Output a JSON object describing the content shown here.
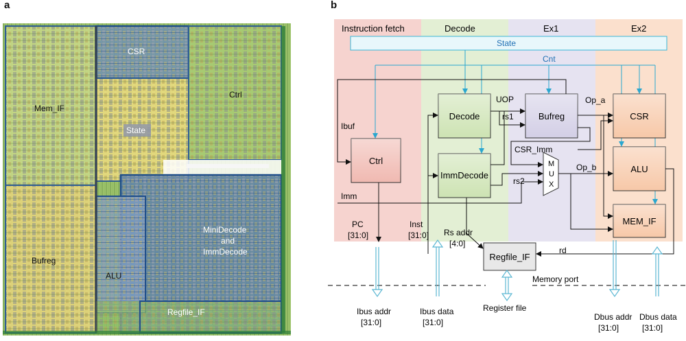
{
  "panel_a": {
    "letter": "a",
    "regions": {
      "csr": "CSR",
      "ctrl": "Ctrl",
      "mem_if": "Mem_IF",
      "state": "State",
      "minidecode": [
        "MiniDecode",
        "and",
        "ImmDecode"
      ],
      "bufreg": "Bufreg",
      "alu": "ALU",
      "regfile_if": "Regfile_IF"
    }
  },
  "panel_b": {
    "letter": "b",
    "stages": [
      "Instruction fetch",
      "Decode",
      "Ex1",
      "Ex2"
    ],
    "state_bar": "State",
    "cnt_label": "Cnt",
    "blocks": {
      "ctrl": "Ctrl",
      "decode": "Decode",
      "immdecode": "ImmDecode",
      "bufreg": "Bufreg",
      "csr": "CSR",
      "alu": "ALU",
      "mem_if": "MEM_IF",
      "regfile_if": "Regfile_IF",
      "mux": [
        "M",
        "U",
        "X"
      ]
    },
    "signals": {
      "ibuf": "Ibuf",
      "imm": "Imm",
      "uop": "UOP",
      "rs1": "rs1",
      "rs2": "rs2",
      "op_a": "Op_a",
      "op_b": "Op_b",
      "csr_imm": "CSR_Imm",
      "rd": "rd",
      "pc": [
        "PC",
        "[31:0]"
      ],
      "inst": [
        "Inst",
        "[31:0]"
      ],
      "rs_addr": [
        "Rs addr",
        "[4:0]"
      ],
      "memory_port": "Memory port",
      "register_file": "Register file",
      "ibus_addr": [
        "Ibus addr",
        "[31:0]"
      ],
      "ibus_data": [
        "Ibus data",
        "[31:0]"
      ],
      "dbus_addr": [
        "Dbus addr",
        "[31:0]"
      ],
      "dbus_data": [
        "Dbus data",
        "[31:0]"
      ]
    }
  },
  "colors": {
    "fetch": "#f6d3cf",
    "decode": "#e3efd4",
    "ex1": "#e6e3f1",
    "ex2": "#fbe0cd",
    "state_bar": "#e8f7fb",
    "state_border": "#39b4d6",
    "cnt_line": "#2aa7cf",
    "wire": "#111111",
    "die_yellow": "#e8d97a",
    "die_green": "#8cbf5a",
    "die_blue": "#2f5e93"
  }
}
